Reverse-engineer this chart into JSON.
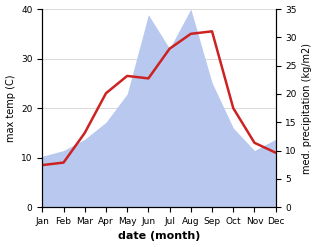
{
  "months": [
    "Jan",
    "Feb",
    "Mar",
    "Apr",
    "May",
    "Jun",
    "Jul",
    "Aug",
    "Sep",
    "Oct",
    "Nov",
    "Dec"
  ],
  "temperature": [
    8.5,
    9.0,
    15.0,
    23.0,
    26.5,
    26.0,
    32.0,
    35.0,
    35.5,
    20.0,
    13.0,
    11.0
  ],
  "precipitation": [
    9.0,
    10.0,
    12.0,
    15.0,
    20.0,
    34.0,
    28.0,
    35.0,
    22.0,
    14.0,
    10.0,
    12.0
  ],
  "temp_color": "#cc2222",
  "precip_color": "#b8c8ee",
  "temp_ylim": [
    0,
    40
  ],
  "precip_ylim": [
    0,
    35
  ],
  "temp_yticks": [
    0,
    10,
    20,
    30,
    40
  ],
  "precip_yticks": [
    0,
    5,
    10,
    15,
    20,
    25,
    30,
    35
  ],
  "ylabel_left": "max temp (C)",
  "ylabel_right": "med. precipitation (kg/m2)",
  "xlabel": "date (month)",
  "background_color": "#ffffff",
  "grid_color": "#cccccc",
  "temp_linewidth": 1.8,
  "label_fontsize": 7,
  "xlabel_fontsize": 8,
  "tick_fontsize": 6.5
}
